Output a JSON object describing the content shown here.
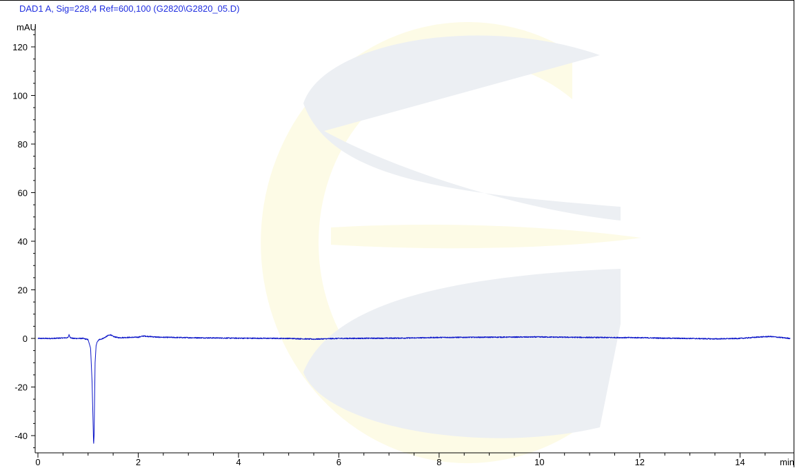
{
  "header": {
    "signal_title": "DAD1 A, Sig=228,4 Ref=600,100 (G2820\\G2820_05.D)"
  },
  "axes": {
    "y_unit": "mAU",
    "x_unit": "min"
  },
  "colors": {
    "trace": "#0a14c8",
    "title": "#1e2de0",
    "axis": "#000000",
    "watermark_gray": "#eceff3",
    "watermark_yellow": "#fdfbe6"
  },
  "watermark": {
    "icon": "c-shaped-company-logo-watermark"
  },
  "chart_data": {
    "type": "line",
    "title": "DAD1 A, Sig=228,4 Ref=600,100 (G2820\\G2820_05.D)",
    "xlabel": "min",
    "ylabel": "mAU",
    "xlim": [
      0,
      15
    ],
    "ylim": [
      -45,
      125
    ],
    "x_ticks": [
      0,
      2,
      4,
      6,
      8,
      10,
      12,
      14
    ],
    "x_tick_labels": [
      "0",
      "2",
      "4",
      "6",
      "8",
      "10",
      "12",
      "14"
    ],
    "y_ticks": [
      -40,
      -20,
      0,
      20,
      40,
      60,
      80,
      100,
      120
    ],
    "y_tick_labels": [
      "-40",
      "-20",
      "0",
      "20",
      "40",
      "60",
      "80",
      "100",
      "120"
    ],
    "grid": false,
    "series": [
      {
        "x": [
          0.0,
          0.3,
          0.6,
          0.62,
          0.65,
          0.7,
          0.9,
          1.0,
          1.05,
          1.08,
          1.1,
          1.11,
          1.12,
          1.13,
          1.14,
          1.16,
          1.18,
          1.22,
          1.3,
          1.4,
          1.45,
          1.5,
          1.6,
          2.0,
          2.1,
          2.4,
          3.0,
          4.0,
          5.0,
          5.5,
          6.0,
          7.0,
          7.5,
          8.0,
          9.0,
          10.0,
          10.5,
          11.0,
          12.0,
          12.5,
          13.0,
          13.5,
          14.0,
          14.4,
          14.6,
          15.0
        ],
        "y": [
          0,
          0,
          0.3,
          1.5,
          0.3,
          0,
          0,
          -0.5,
          -4,
          -18,
          -35,
          -44,
          -40,
          -25,
          -10,
          -3,
          -1.5,
          -0.5,
          0,
          1.2,
          1.5,
          0.8,
          0.3,
          0.5,
          1.0,
          0.5,
          0.3,
          0.1,
          0,
          -0.3,
          0,
          0.1,
          0.2,
          0.4,
          0.5,
          0.6,
          0.5,
          0.4,
          0.3,
          0.1,
          0,
          -0.2,
          0,
          0.6,
          0.8,
          0
        ]
      }
    ]
  }
}
